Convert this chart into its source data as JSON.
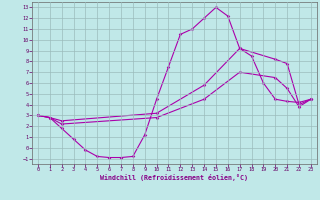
{
  "xlabel": "Windchill (Refroidissement éolien,°C)",
  "x_ticks": [
    0,
    1,
    2,
    3,
    4,
    5,
    6,
    7,
    8,
    9,
    10,
    11,
    12,
    13,
    14,
    15,
    16,
    17,
    18,
    19,
    20,
    21,
    22,
    23
  ],
  "y_ticks": [
    -1,
    0,
    1,
    2,
    3,
    4,
    5,
    6,
    7,
    8,
    9,
    10,
    11,
    12,
    13
  ],
  "ylim": [
    -1.5,
    13.5
  ],
  "xlim": [
    -0.5,
    23.5
  ],
  "bg_color": "#c0e8e8",
  "grid_color": "#9bbcbc",
  "line_color": "#aa00aa",
  "line1_x": [
    0,
    1,
    2,
    3,
    4,
    5,
    6,
    7,
    8,
    9,
    10,
    11,
    12,
    13,
    14,
    15,
    16,
    17,
    18,
    19,
    20,
    21,
    22,
    23
  ],
  "line1_y": [
    3.0,
    2.8,
    1.8,
    0.8,
    -0.2,
    -0.8,
    -0.9,
    -0.9,
    -0.8,
    1.2,
    4.5,
    7.5,
    10.5,
    11.0,
    12.0,
    13.0,
    12.2,
    9.2,
    8.5,
    6.0,
    4.5,
    4.3,
    4.2,
    4.5
  ],
  "line2_x": [
    0,
    1,
    2,
    10,
    14,
    17,
    20,
    21,
    22,
    23
  ],
  "line2_y": [
    3.0,
    2.8,
    2.5,
    3.2,
    5.8,
    9.2,
    8.2,
    7.8,
    4.0,
    4.5
  ],
  "line3_x": [
    0,
    1,
    2,
    10,
    14,
    17,
    20,
    21,
    22,
    23
  ],
  "line3_y": [
    3.0,
    2.8,
    2.2,
    2.8,
    4.5,
    7.0,
    6.5,
    5.5,
    3.8,
    4.5
  ]
}
